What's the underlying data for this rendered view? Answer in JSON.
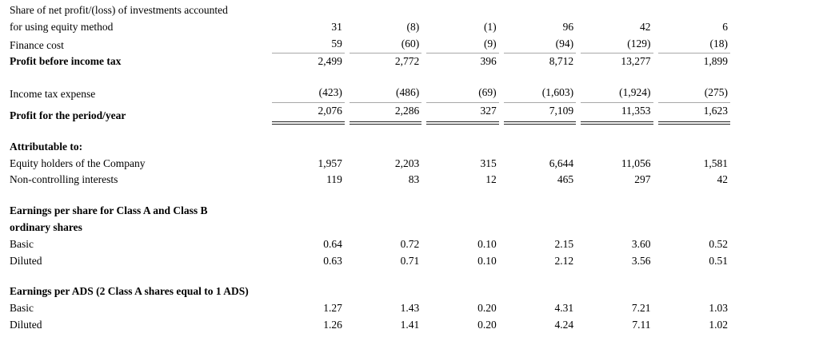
{
  "page": {
    "background": "#ffffff",
    "text_color": "#000000",
    "single_rule_color": "#a8a8a8",
    "double_rule_color": "#222222"
  },
  "table": {
    "num_columns": 6,
    "rows": [
      {
        "type": "item",
        "label": "Share of net profit/(loss) of investments accounted",
        "bold": false,
        "rule": "",
        "values": null
      },
      {
        "type": "item",
        "label": "for using equity method",
        "bold": false,
        "rule": "",
        "values": [
          "31",
          "(8)",
          "(1)",
          "96",
          "42",
          "6"
        ]
      },
      {
        "type": "item",
        "label": "Finance cost",
        "bold": false,
        "rule": "single",
        "values": [
          "59",
          "(60)",
          "(9)",
          "(94)",
          "(129)",
          "(18)"
        ]
      },
      {
        "type": "item",
        "label": "Profit before income tax",
        "bold": true,
        "rule": "",
        "values": [
          "2,499",
          "2,772",
          "396",
          "8,712",
          "13,277",
          "1,899"
        ]
      },
      {
        "type": "spacer"
      },
      {
        "type": "item",
        "label": "Income tax expense",
        "bold": false,
        "rule": "single",
        "values": [
          "(423)",
          "(486)",
          "(69)",
          "(1,603)",
          "(1,924)",
          "(275)"
        ]
      },
      {
        "type": "item",
        "label": "Profit for the period/year",
        "bold": true,
        "rule": "double",
        "values": [
          "2,076",
          "2,286",
          "327",
          "7,109",
          "11,353",
          "1,623"
        ]
      },
      {
        "type": "spacer"
      },
      {
        "type": "item",
        "label": "Attributable to:",
        "bold": true,
        "rule": "",
        "values": null
      },
      {
        "type": "item",
        "label": "Equity holders of the Company",
        "bold": false,
        "rule": "",
        "values": [
          "1,957",
          "2,203",
          "315",
          "6,644",
          "11,056",
          "1,581"
        ]
      },
      {
        "type": "item",
        "label": "Non-controlling interests",
        "bold": false,
        "rule": "",
        "values": [
          "119",
          "83",
          "12",
          "465",
          "297",
          "42"
        ]
      },
      {
        "type": "spacer"
      },
      {
        "type": "item",
        "label": "Earnings per share for Class A and Class B",
        "bold": true,
        "rule": "",
        "values": null
      },
      {
        "type": "item",
        "label": "ordinary shares",
        "bold": true,
        "rule": "",
        "values": null
      },
      {
        "type": "item",
        "label": "Basic",
        "bold": false,
        "rule": "",
        "values": [
          "0.64",
          "0.72",
          "0.10",
          "2.15",
          "3.60",
          "0.52"
        ]
      },
      {
        "type": "item",
        "label": "Diluted",
        "bold": false,
        "rule": "",
        "values": [
          "0.63",
          "0.71",
          "0.10",
          "2.12",
          "3.56",
          "0.51"
        ]
      },
      {
        "type": "spacer"
      },
      {
        "type": "item",
        "label": "Earnings per ADS (2 Class A shares equal to 1 ADS)",
        "bold": true,
        "rule": "",
        "values": null
      },
      {
        "type": "item",
        "label": "Basic",
        "bold": false,
        "rule": "",
        "values": [
          "1.27",
          "1.43",
          "0.20",
          "4.31",
          "7.21",
          "1.03"
        ]
      },
      {
        "type": "item",
        "label": "Diluted",
        "bold": false,
        "rule": "",
        "values": [
          "1.26",
          "1.41",
          "0.20",
          "4.24",
          "7.11",
          "1.02"
        ]
      }
    ]
  }
}
